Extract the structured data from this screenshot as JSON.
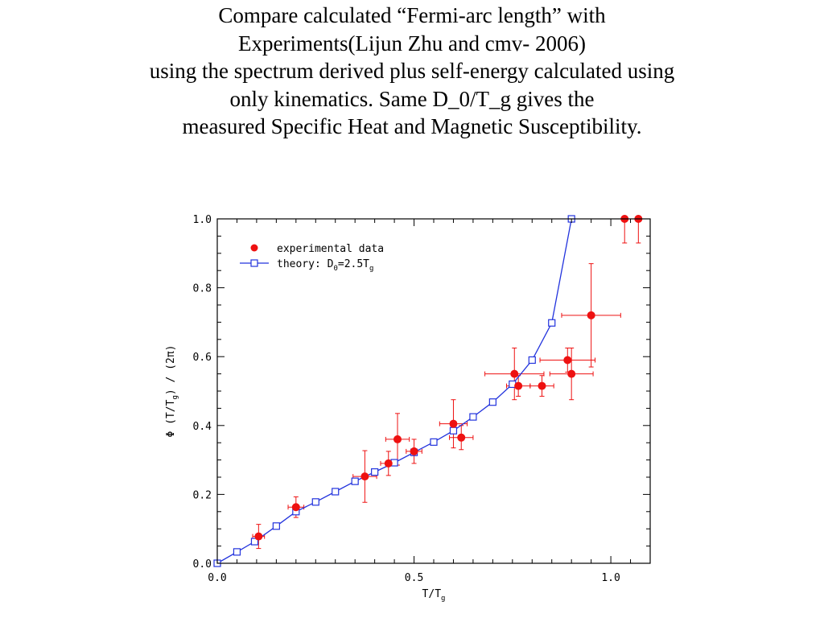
{
  "slide": {
    "title_lines": [
      "Compare calculated “Fermi-arc length” with",
      "Experiments(Lijun Zhu and cmv- 2006)",
      "using the spectrum derived plus self-energy calculated using",
      "only kinematics. Same D_0/T_g gives the",
      "measured Specific Heat and Magnetic Susceptibility."
    ]
  },
  "chart_data": {
    "type": "scatter",
    "xlabel": {
      "main": "T/T",
      "sub": "g"
    },
    "ylabel": {
      "pre": "Φ (T/T",
      "sub": "g",
      "post": ") / (2π)"
    },
    "xlim": [
      0,
      1.1
    ],
    "ylim": [
      0,
      1.0
    ],
    "x_ticks": [
      "0.0",
      "0.5",
      "1.0"
    ],
    "y_ticks": [
      "0.0",
      "0.2",
      "0.4",
      "0.6",
      "0.8",
      "1.0"
    ],
    "grid": false,
    "legend_position": "top-left",
    "series": [
      {
        "name": "experimental data",
        "kind": "points-with-error-bars",
        "color": "#ee1111",
        "points": [
          {
            "x": 0.105,
            "y": 0.078,
            "xerr": 0.015,
            "yerr": 0.035
          },
          {
            "x": 0.2,
            "y": 0.163,
            "xerr": 0.02,
            "yerr": 0.03
          },
          {
            "x": 0.375,
            "y": 0.252,
            "xerr": 0.03,
            "yerr": 0.075
          },
          {
            "x": 0.435,
            "y": 0.29,
            "xerr": 0.02,
            "yerr": 0.035
          },
          {
            "x": 0.458,
            "y": 0.36,
            "xerr": 0.03,
            "yerr": 0.075
          },
          {
            "x": 0.5,
            "y": 0.325,
            "xerr": 0.02,
            "yerr": 0.035
          },
          {
            "x": 0.6,
            "y": 0.405,
            "xerr": 0.035,
            "yerr": 0.07
          },
          {
            "x": 0.62,
            "y": 0.365,
            "xerr": 0.03,
            "yerr": 0.035
          },
          {
            "x": 0.755,
            "y": 0.55,
            "xerr": 0.075,
            "yerr": 0.075
          },
          {
            "x": 0.765,
            "y": 0.515,
            "xerr": 0.03,
            "yerr": 0.03
          },
          {
            "x": 0.825,
            "y": 0.515,
            "xerr": 0.03,
            "yerr": 0.03
          },
          {
            "x": 0.89,
            "y": 0.59,
            "xerr": 0.07,
            "yerr": 0.035
          },
          {
            "x": 0.9,
            "y": 0.55,
            "xerr": 0.055,
            "yerr": 0.075
          },
          {
            "x": 0.95,
            "y": 0.72,
            "xerr": 0.075,
            "yerr": 0.15
          },
          {
            "x": 1.035,
            "y": 1.0,
            "xerr": 0.0,
            "yerr": 0.07
          },
          {
            "x": 1.07,
            "y": 1.0,
            "xerr": 0.0,
            "yerr": 0.07
          }
        ]
      },
      {
        "name": "theory: D",
        "name_sub": "0",
        "name_post": "=2.5T",
        "name_post_sub": "g",
        "kind": "line-with-open-squares",
        "color": "#2233dd",
        "points": [
          {
            "x": 0.0,
            "y": 0.0
          },
          {
            "x": 0.05,
            "y": 0.033
          },
          {
            "x": 0.095,
            "y": 0.063
          },
          {
            "x": 0.15,
            "y": 0.108
          },
          {
            "x": 0.2,
            "y": 0.15
          },
          {
            "x": 0.25,
            "y": 0.178
          },
          {
            "x": 0.3,
            "y": 0.208
          },
          {
            "x": 0.35,
            "y": 0.238
          },
          {
            "x": 0.4,
            "y": 0.265
          },
          {
            "x": 0.45,
            "y": 0.292
          },
          {
            "x": 0.5,
            "y": 0.322
          },
          {
            "x": 0.55,
            "y": 0.352
          },
          {
            "x": 0.6,
            "y": 0.385
          },
          {
            "x": 0.65,
            "y": 0.425
          },
          {
            "x": 0.7,
            "y": 0.468
          },
          {
            "x": 0.75,
            "y": 0.52
          },
          {
            "x": 0.8,
            "y": 0.59
          },
          {
            "x": 0.85,
            "y": 0.698
          },
          {
            "x": 0.9,
            "y": 1.0
          }
        ]
      }
    ]
  }
}
